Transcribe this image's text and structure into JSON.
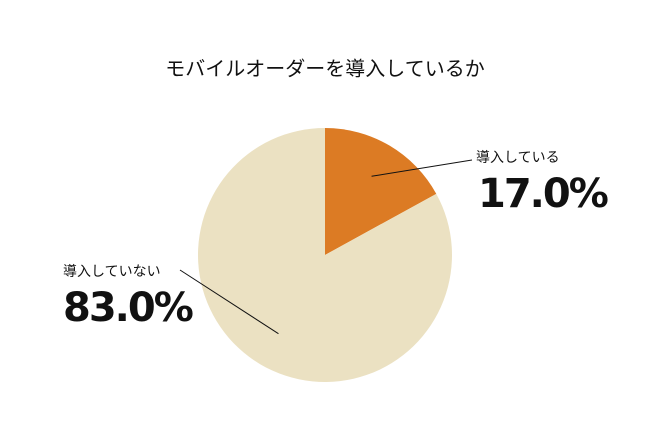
{
  "chart_data": {
    "type": "pie",
    "title": "モバイルオーダーを導入しているか",
    "categories": [
      "導入している",
      "導入していない"
    ],
    "values": [
      17.0,
      83.0
    ],
    "value_labels": [
      "17.0%",
      "83.0%"
    ],
    "colors": [
      "#dc7b24",
      "#ebe1c2"
    ]
  }
}
